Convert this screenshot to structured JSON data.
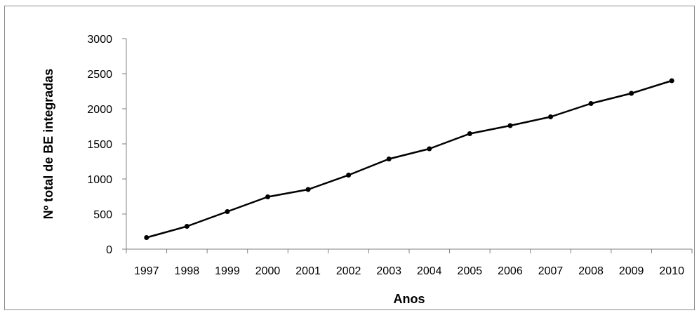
{
  "chart_data": {
    "type": "line",
    "title": "",
    "xlabel": "Anos",
    "ylabel": "Nº total de BE integradas",
    "ylim": [
      0,
      3000
    ],
    "yticks": [
      "0",
      "500",
      "1000",
      "1500",
      "2000",
      "2500",
      "3000"
    ],
    "categories": [
      "1997",
      "1998",
      "1999",
      "2000",
      "2001",
      "2002",
      "2003",
      "2004",
      "2005",
      "2006",
      "2007",
      "2008",
      "2009",
      "2010"
    ],
    "series": [
      {
        "values": [
          165,
          325,
          535,
          745,
          850,
          1055,
          1285,
          1430,
          1645,
          1760,
          1885,
          2075,
          2220,
          2400
        ]
      }
    ],
    "grid": false,
    "legend": "none",
    "colors": {
      "line": "#000000",
      "axis": "#808080"
    }
  }
}
